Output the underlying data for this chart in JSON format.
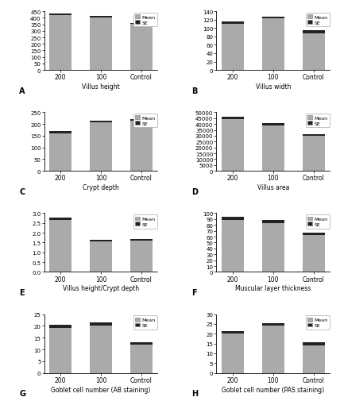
{
  "subplots": [
    {
      "label": "A",
      "title": "Villus height",
      "categories": [
        "200",
        "100",
        "Control"
      ],
      "means": [
        420,
        405,
        352
      ],
      "ses": [
        12,
        8,
        6
      ],
      "ylim": [
        0,
        450
      ],
      "yticks": [
        0,
        50,
        100,
        150,
        200,
        250,
        300,
        350,
        400,
        450
      ]
    },
    {
      "label": "B",
      "title": "Villus width",
      "categories": [
        "200",
        "100",
        "Control"
      ],
      "means": [
        110,
        124,
        88
      ],
      "ses": [
        6,
        4,
        6
      ],
      "ylim": [
        0,
        140
      ],
      "yticks": [
        0,
        20,
        40,
        60,
        80,
        100,
        120,
        140
      ]
    },
    {
      "label": "C",
      "title": "Crypt depth",
      "categories": [
        "200",
        "100",
        "Control"
      ],
      "means": [
        160,
        208,
        215
      ],
      "ses": [
        9,
        5,
        5
      ],
      "ylim": [
        0,
        250
      ],
      "yticks": [
        0,
        50,
        100,
        150,
        200,
        250
      ]
    },
    {
      "label": "D",
      "title": "Villus area",
      "categories": [
        "200",
        "100",
        "Control"
      ],
      "means": [
        44000,
        39000,
        30000
      ],
      "ses": [
        2000,
        1500,
        1200
      ],
      "ylim": [
        0,
        50000
      ],
      "yticks": [
        0,
        5000,
        10000,
        15000,
        20000,
        25000,
        30000,
        35000,
        40000,
        45000,
        50000
      ]
    },
    {
      "label": "E",
      "title": "Villus height/Crypt depth",
      "categories": [
        "200",
        "100",
        "Control"
      ],
      "means": [
        2.65,
        1.55,
        1.62
      ],
      "ses": [
        0.12,
        0.08,
        0.07
      ],
      "ylim": [
        0,
        3.0
      ],
      "yticks": [
        0.0,
        0.5,
        1.0,
        1.5,
        2.0,
        2.5,
        3.0
      ]
    },
    {
      "label": "F",
      "title": "Muscular layer thickness",
      "categories": [
        "200",
        "100",
        "Control"
      ],
      "means": [
        88,
        83,
        63
      ],
      "ses": [
        6,
        5,
        4
      ],
      "ylim": [
        0,
        100
      ],
      "yticks": [
        0,
        10,
        20,
        30,
        40,
        50,
        60,
        70,
        80,
        90,
        100
      ]
    },
    {
      "label": "G",
      "title": "Goblet cell number (AB staining)",
      "categories": [
        "200",
        "100",
        "Control"
      ],
      "means": [
        19,
        20,
        12
      ],
      "ses": [
        1.5,
        1.5,
        1
      ],
      "ylim": [
        0,
        25
      ],
      "yticks": [
        0,
        5,
        10,
        15,
        20,
        25
      ]
    },
    {
      "label": "H",
      "title": "Goblet cell number (PAS staining)",
      "categories": [
        "200",
        "100",
        "Control"
      ],
      "means": [
        20,
        24,
        14
      ],
      "ses": [
        1.5,
        1.5,
        1.5
      ],
      "ylim": [
        0,
        30
      ],
      "yticks": [
        0,
        5,
        10,
        15,
        20,
        25,
        30
      ]
    }
  ],
  "bar_color": "#aaaaaa",
  "se_color": "#222222",
  "bar_width": 0.55
}
